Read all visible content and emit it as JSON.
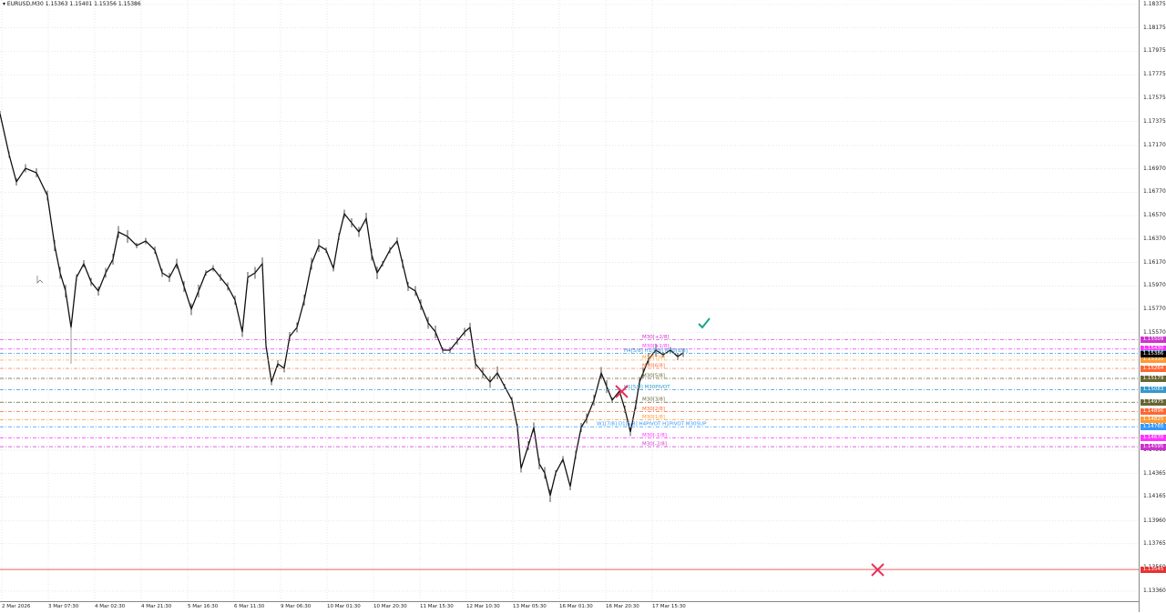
{
  "header": {
    "symbol_line": "▾ EURUSD,M30  1.15363 1.15401 1.15356 1.15386"
  },
  "y_axis": {
    "ticks": [
      "1.18375",
      "1.18175",
      "1.17975",
      "1.17775",
      "1.17575",
      "1.17375",
      "1.17170",
      "1.16970",
      "1.16770",
      "1.16570",
      "1.16370",
      "1.16170",
      "1.15970",
      "1.15770",
      "1.15570",
      "1.15370",
      "1.15170",
      "1.14970",
      "1.14765",
      "1.14565",
      "1.14365",
      "1.14165",
      "1.13960",
      "1.13765",
      "1.13560",
      "1.13360"
    ]
  },
  "x_axis": {
    "ticks": [
      "2 Mar 2026",
      "3 Mar 07:30",
      "4 Mar 02:30",
      "4 Mar 21:30",
      "5 Mar 16:30",
      "6 Mar 11:30",
      "9 Mar 06:30",
      "10 Mar 01:30",
      "10 Mar 20:30",
      "11 Mar 15:30",
      "12 Mar 10:30",
      "13 Mar 05:30",
      "16 Mar 01:30",
      "16 Mar 20:30",
      "17 Mar 15:30"
    ]
  },
  "levels": [
    {
      "label": "M30[+2/8]",
      "price": "1.15509",
      "color": "#cc33cc"
    },
    {
      "label": "M30[+1/8]",
      "price": "1.15430",
      "color": "#ff33ff"
    },
    {
      "label": "H4[5/8] H1[6/8] M30[8/8]",
      "price": "1.15394",
      "color": "#3399cc"
    },
    {
      "label": "M30[7/8]",
      "price": "1.15335",
      "color": "#ff9933"
    },
    {
      "label": "M30[6/8]",
      "price": "1.15264",
      "color": "#ff6633"
    },
    {
      "label": "M30[5/8]",
      "price": "1.15179",
      "color": "#666633"
    },
    {
      "label": "H1[5/8] M30PIVOT",
      "price": "1.15083",
      "color": "#3399cc"
    },
    {
      "label": "M30[3/8]",
      "price": "1.14975",
      "color": "#666633"
    },
    {
      "label": "M30[2/8]",
      "price": "1.14896",
      "color": "#ff6633"
    },
    {
      "label": "M30[1/8]",
      "price": "1.14825",
      "color": "#ff9933"
    },
    {
      "label": "W1[7/8] D1[5/8] H4PIVOT H1PIVOT M30SUP",
      "price": "1.14765",
      "color": "#3399ff"
    },
    {
      "label": "M30[-1/8]",
      "price": "1.14670",
      "color": "#ff33ff"
    },
    {
      "label": "M30[-2/8]",
      "price": "1.14595",
      "color": "#cc33cc"
    }
  ],
  "current_price": {
    "price": "1.15386"
  },
  "red_line": {
    "price": "1.13545",
    "color": "#e53333"
  },
  "colors": {
    "check": "#16a58a",
    "cross": "#e6335a"
  }
}
